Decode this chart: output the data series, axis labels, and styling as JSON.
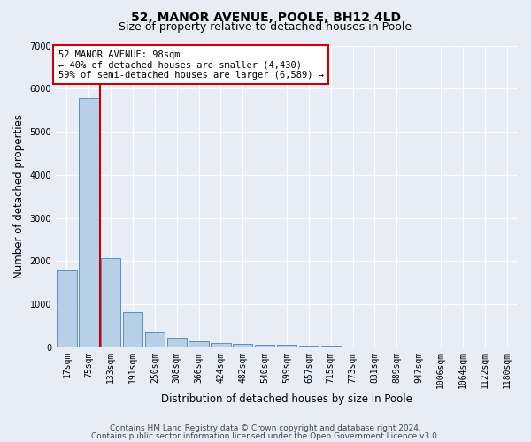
{
  "title": "52, MANOR AVENUE, POOLE, BH12 4LD",
  "subtitle": "Size of property relative to detached houses in Poole",
  "xlabel": "Distribution of detached houses by size in Poole",
  "ylabel": "Number of detached properties",
  "categories": [
    "17sqm",
    "75sqm",
    "133sqm",
    "191sqm",
    "250sqm",
    "308sqm",
    "366sqm",
    "424sqm",
    "482sqm",
    "540sqm",
    "599sqm",
    "657sqm",
    "715sqm",
    "773sqm",
    "831sqm",
    "889sqm",
    "947sqm",
    "1006sqm",
    "1064sqm",
    "1122sqm",
    "1180sqm"
  ],
  "values": [
    1800,
    5780,
    2060,
    820,
    340,
    215,
    140,
    100,
    75,
    60,
    55,
    50,
    50,
    0,
    0,
    0,
    0,
    0,
    0,
    0,
    0
  ],
  "bar_color": "#b8cfe8",
  "bar_edge_color": "#5a8fc0",
  "red_line_x": 1.5,
  "annotation_text": "52 MANOR AVENUE: 98sqm\n← 40% of detached houses are smaller (4,430)\n59% of semi-detached houses are larger (6,589) →",
  "annotation_box_facecolor": "#ffffff",
  "annotation_box_edgecolor": "#cc0000",
  "red_line_color": "#cc0000",
  "ylim": [
    0,
    7000
  ],
  "yticks": [
    0,
    1000,
    2000,
    3000,
    4000,
    5000,
    6000,
    7000
  ],
  "bg_color": "#e8edf5",
  "plot_bg_color": "#e8edf5",
  "grid_color": "#ffffff",
  "footer1": "Contains HM Land Registry data © Crown copyright and database right 2024.",
  "footer2": "Contains public sector information licensed under the Open Government Licence v3.0.",
  "title_fontsize": 10,
  "subtitle_fontsize": 9,
  "axis_label_fontsize": 8.5,
  "tick_fontsize": 7,
  "annotation_fontsize": 7.5,
  "footer_fontsize": 6.5
}
